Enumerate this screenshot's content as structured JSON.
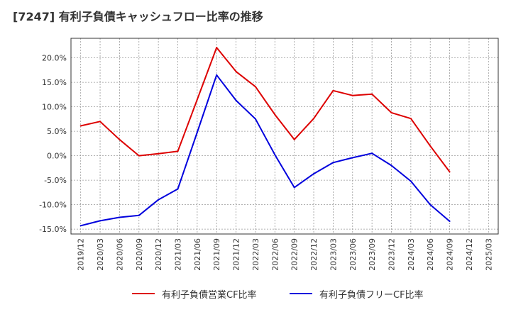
{
  "chart_data": {
    "type": "line",
    "title": "[7247]  有利子負債キャッシュフロー比率の推移",
    "categories": [
      "2019/12",
      "2020/03",
      "2020/06",
      "2020/09",
      "2020/12",
      "2021/03",
      "2021/06",
      "2021/09",
      "2021/12",
      "2022/03",
      "2022/06",
      "2022/09",
      "2022/12",
      "2023/03",
      "2023/06",
      "2023/09",
      "2023/12",
      "2024/03",
      "2024/06",
      "2024/09",
      "2024/12",
      "2025/03"
    ],
    "y_tick_labels": [
      "20.0%",
      "15.0%",
      "10.0%",
      "5.0%",
      "0.0%",
      "-5.0%",
      "-10.0%",
      "-15.0%"
    ],
    "y_ticks": [
      20,
      15,
      10,
      5,
      0,
      -5,
      -10,
      -15
    ],
    "ylim": [
      -16,
      24
    ],
    "grid": true,
    "legend_position": "bottom",
    "series": [
      {
        "name": "有利子負債営業CF比率",
        "color": "#dd0000",
        "values": [
          6.1,
          7.0,
          3.3,
          0.0,
          0.4,
          0.9,
          11.5,
          22.1,
          17.2,
          14.1,
          8.4,
          3.3,
          7.6,
          13.3,
          12.3,
          12.6,
          8.8,
          7.6,
          2.0,
          -3.3,
          null,
          null
        ]
      },
      {
        "name": "有利子負債フリーCF比率",
        "color": "#0000dd",
        "values": [
          -14.3,
          -13.3,
          -12.6,
          -12.2,
          -9.0,
          -6.8,
          4.8,
          16.5,
          11.3,
          7.5,
          0.2,
          -6.5,
          -3.7,
          -1.4,
          -0.4,
          0.5,
          -2.0,
          -5.2,
          -10.0,
          -13.4,
          null,
          null
        ]
      }
    ]
  }
}
